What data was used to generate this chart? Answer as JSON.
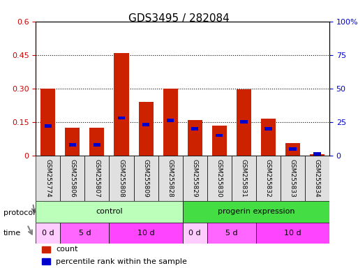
{
  "title": "GDS3495 / 282084",
  "samples": [
    "GSM255774",
    "GSM255806",
    "GSM255807",
    "GSM255808",
    "GSM255809",
    "GSM255828",
    "GSM255829",
    "GSM255830",
    "GSM255831",
    "GSM255832",
    "GSM255833",
    "GSM255834"
  ],
  "red_values": [
    0.3,
    0.125,
    0.125,
    0.46,
    0.24,
    0.3,
    0.16,
    0.135,
    0.295,
    0.165,
    0.055,
    0.005
  ],
  "blue_values_pct": [
    22,
    8,
    8,
    28,
    23,
    26,
    20,
    15,
    25,
    20,
    5,
    1
  ],
  "ylim_left": [
    0,
    0.6
  ],
  "ylim_right": [
    0,
    100
  ],
  "yticks_left": [
    0,
    0.15,
    0.3,
    0.45,
    0.6
  ],
  "yticks_right": [
    0,
    25,
    50,
    75,
    100
  ],
  "ytick_labels_left": [
    "0",
    "0.15",
    "0.30",
    "0.45",
    "0.6"
  ],
  "ytick_labels_right": [
    "0",
    "25",
    "50",
    "75",
    "100%"
  ],
  "left_tick_color": "#cc0000",
  "right_tick_color": "#0000cc",
  "grid_color": "#000000",
  "bar_color_red": "#cc2200",
  "bar_color_blue": "#0000cc",
  "protocol_groups": [
    {
      "label": "control",
      "start": 0,
      "end": 5,
      "color": "#aaffaa"
    },
    {
      "label": "progerin expression",
      "start": 6,
      "end": 11,
      "color": "#44dd44"
    }
  ],
  "time_groups": [
    {
      "label": "0 d",
      "start": 0,
      "end": 0,
      "color": "#ffaaff"
    },
    {
      "label": "5 d",
      "start": 1,
      "end": 2,
      "color": "#ff66ff"
    },
    {
      "label": "10 d",
      "start": 3,
      "end": 5,
      "color": "#ff44ff"
    },
    {
      "label": "0 d",
      "start": 6,
      "end": 6,
      "color": "#ffaaff"
    },
    {
      "label": "5 d",
      "start": 7,
      "end": 9,
      "color": "#ff66ff"
    },
    {
      "label": "10 d",
      "start": 10,
      "end": 11,
      "color": "#ff44ff"
    }
  ],
  "legend_items": [
    {
      "label": "count",
      "color": "#cc2200"
    },
    {
      "label": "percentile rank within the sample",
      "color": "#0000cc"
    }
  ],
  "bg_color": "#ffffff",
  "bar_width": 0.6
}
